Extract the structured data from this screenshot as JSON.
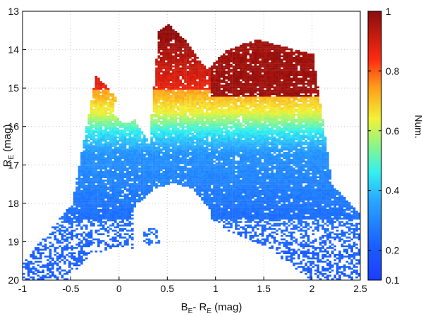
{
  "chart_data": {
    "type": "heatmap",
    "title": "",
    "xlabel": {
      "main": "B",
      "sub1": "E",
      "mid": "- R",
      "sub2": "E",
      "tail": " (mag)"
    },
    "ylabel": {
      "main": "R",
      "sub": "E",
      "tail": " (mag)"
    },
    "xlim": [
      -1,
      2.5
    ],
    "ylim": [
      20,
      13
    ],
    "y_inverted": true,
    "x_ticks": [
      -1,
      -0.5,
      0,
      0.5,
      1,
      1.5,
      2,
      2.5
    ],
    "x_tick_labels": [
      "-1",
      "-0.5",
      "0",
      "0.5",
      "1",
      "1.5",
      "2",
      "2.5"
    ],
    "y_ticks": [
      13,
      14,
      15,
      16,
      17,
      18,
      19,
      20
    ],
    "y_tick_labels": [
      "13",
      "14",
      "15",
      "16",
      "17",
      "18",
      "19",
      "20"
    ],
    "grid": true,
    "colorbar": {
      "label": "Num.",
      "range": [
        0.1,
        1
      ],
      "ticks": [
        0.1,
        0.2,
        0.4,
        0.6,
        0.8,
        1
      ],
      "tick_labels": [
        "0.1",
        "0.2",
        "0.4",
        "0.6",
        "0.8",
        "1"
      ],
      "colormap": "jet",
      "position": "right"
    },
    "density_regions": [
      {
        "name": "main-sequence-left-branch",
        "x": [
          -1.0,
          -0.5,
          -0.2,
          0.1,
          0.35
        ],
        "y": [
          19.8,
          19.0,
          18.0,
          17.0,
          16.6
        ],
        "value": 0.2
      },
      {
        "name": "main-sequence-right-branch",
        "x": [
          0.9,
          1.5,
          2.0,
          2.4
        ],
        "y": [
          17.0,
          18.0,
          19.0,
          19.8
        ],
        "value": 0.2
      },
      {
        "name": "dense-core",
        "x": [
          0.7
        ],
        "y": [
          16.6
        ],
        "value": 0.4
      },
      {
        "name": "detached-clump",
        "x": [
          0.35
        ],
        "y": [
          18.85
        ],
        "value": 0.2
      },
      {
        "name": "turnoff-band",
        "x": [
          0.3,
          0.8,
          1.2
        ],
        "y": [
          16.0,
          15.8,
          15.8
        ],
        "value": 0.6
      },
      {
        "name": "upper-red-region",
        "x": [
          0.4,
          0.6
        ],
        "y": [
          14.0,
          15.0
        ],
        "value": 0.85
      },
      {
        "name": "left-spike",
        "x": [
          -0.25,
          -0.1
        ],
        "y": [
          14.8,
          15.5
        ],
        "value": 0.75
      },
      {
        "name": "giant-branch-plume",
        "x": [
          1.0,
          1.4,
          1.8,
          2.0
        ],
        "y": [
          14.8,
          14.5,
          14.2,
          14.1
        ],
        "value": 1.0
      }
    ]
  },
  "colors": {
    "jet": [
      "#00008f",
      "#0000ff",
      "#0080ff",
      "#00ffff",
      "#80ff80",
      "#ffff00",
      "#ff8000",
      "#ff0000",
      "#800000"
    ],
    "grid": "#c8c8c8",
    "axis": "#000000"
  }
}
